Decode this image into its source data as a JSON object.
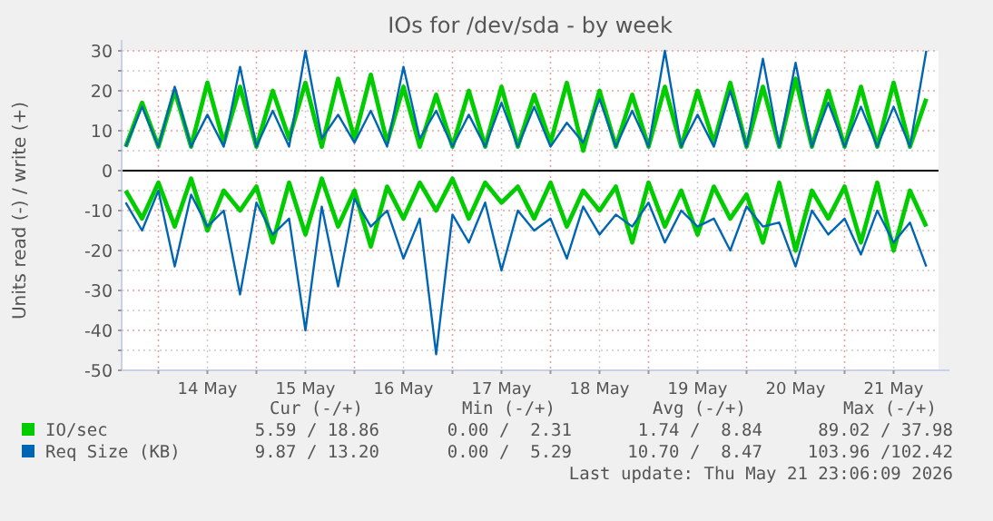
{
  "chart_data": {
    "type": "line",
    "title": "IOs for /dev/sda - by week",
    "ylabel": "Units read (-) / write (+)",
    "x": [
      "2026-05-13T16:00",
      "2026-05-13T20:00",
      "2026-05-14T00:00",
      "2026-05-14T04:00",
      "2026-05-14T08:00",
      "2026-05-14T12:00",
      "2026-05-14T16:00",
      "2026-05-14T20:00",
      "2026-05-15T00:00",
      "2026-05-15T04:00",
      "2026-05-15T08:00",
      "2026-05-15T12:00",
      "2026-05-15T16:00",
      "2026-05-15T20:00",
      "2026-05-16T00:00",
      "2026-05-16T04:00",
      "2026-05-16T08:00",
      "2026-05-16T12:00",
      "2026-05-16T16:00",
      "2026-05-16T20:00",
      "2026-05-17T00:00",
      "2026-05-17T04:00",
      "2026-05-17T08:00",
      "2026-05-17T12:00",
      "2026-05-17T16:00",
      "2026-05-17T20:00",
      "2026-05-18T00:00",
      "2026-05-18T04:00",
      "2026-05-18T08:00",
      "2026-05-18T12:00",
      "2026-05-18T16:00",
      "2026-05-18T20:00",
      "2026-05-19T00:00",
      "2026-05-19T04:00",
      "2026-05-19T08:00",
      "2026-05-19T12:00",
      "2026-05-19T16:00",
      "2026-05-19T20:00",
      "2026-05-20T00:00",
      "2026-05-20T04:00",
      "2026-05-20T08:00",
      "2026-05-20T12:00",
      "2026-05-20T16:00",
      "2026-05-20T20:00",
      "2026-05-21T00:00",
      "2026-05-21T04:00",
      "2026-05-21T08:00",
      "2026-05-21T12:00",
      "2026-05-21T16:00",
      "2026-05-21T20:00"
    ],
    "series": [
      {
        "color": "#00cc00",
        "values": [
          -5,
          -12,
          -3,
          -14,
          -2,
          -15,
          -5,
          -10,
          -4,
          -18,
          -3,
          -16,
          -2,
          -14,
          -5,
          -19,
          -4,
          -12,
          -3,
          -10,
          -2,
          -12,
          -3,
          -8,
          -4,
          -12,
          -3,
          -14,
          -5,
          -10,
          -4,
          -18,
          -3,
          -14,
          -5,
          -16,
          -4,
          -12,
          -6,
          -18,
          -3,
          -20,
          -5,
          -12,
          -4,
          -18,
          -3,
          -20,
          -5,
          -14
        ]
      },
      {
        "name": "IO/sec",
        "color": "#00cc00",
        "values": [
          6,
          17,
          6,
          20,
          6,
          22,
          7,
          21,
          6,
          20,
          8,
          22,
          6,
          23,
          8,
          24,
          7,
          21,
          6,
          19,
          6,
          20,
          6,
          21,
          6,
          19,
          7,
          22,
          5,
          20,
          6,
          19,
          6,
          21,
          6,
          20,
          7,
          22,
          6,
          21,
          6,
          23,
          6,
          20,
          6,
          21,
          6,
          22,
          6,
          18
        ]
      },
      {
        "color": "#0066b3",
        "values": [
          -8,
          -15,
          -5,
          -24,
          -6,
          -14,
          -10,
          -31,
          -8,
          -16,
          -12,
          -40,
          -9,
          -29,
          -7,
          -14,
          -10,
          -22,
          -12,
          -46,
          -11,
          -18,
          -8,
          -25,
          -10,
          -15,
          -12,
          -22,
          -9,
          -16,
          -11,
          -14,
          -8,
          -18,
          -10,
          -14,
          -12,
          -20,
          -9,
          -14,
          -13,
          -24,
          -10,
          -16,
          -12,
          -21,
          -10,
          -18,
          -13,
          -24
        ]
      },
      {
        "name": "Req Size (KB)",
        "color": "#0066b3",
        "values": [
          6,
          16,
          6,
          21,
          6,
          14,
          6,
          26,
          6,
          15,
          6,
          30,
          8,
          14,
          7,
          15,
          6,
          26,
          8,
          15,
          6,
          14,
          6,
          17,
          6,
          16,
          6,
          12,
          7,
          18,
          6,
          15,
          6,
          30,
          6,
          14,
          6,
          20,
          6,
          28,
          6,
          27,
          6,
          17,
          6,
          16,
          6,
          16,
          6,
          30
        ]
      }
    ],
    "xlim": [
      "2026-05-13T15:00",
      "2026-05-21T23:00"
    ],
    "xticks": [
      {
        "value": "2026-05-14T00:00",
        "label": null
      },
      {
        "value": "2026-05-14T12:00",
        "label": "14 May"
      },
      {
        "value": "2026-05-15T00:00",
        "label": null
      },
      {
        "value": "2026-05-15T12:00",
        "label": "15 May"
      },
      {
        "value": "2026-05-16T00:00",
        "label": null
      },
      {
        "value": "2026-05-16T12:00",
        "label": "16 May"
      },
      {
        "value": "2026-05-17T00:00",
        "label": null
      },
      {
        "value": "2026-05-17T12:00",
        "label": "17 May"
      },
      {
        "value": "2026-05-18T00:00",
        "label": null
      },
      {
        "value": "2026-05-18T12:00",
        "label": "18 May"
      },
      {
        "value": "2026-05-19T00:00",
        "label": null
      },
      {
        "value": "2026-05-19T12:00",
        "label": "19 May"
      },
      {
        "value": "2026-05-20T00:00",
        "label": null
      },
      {
        "value": "2026-05-20T12:00",
        "label": "20 May"
      },
      {
        "value": "2026-05-21T00:00",
        "label": null
      },
      {
        "value": "2026-05-21T12:00",
        "label": "21 May"
      }
    ],
    "ylim": [
      -50,
      30
    ],
    "yticks": [
      -50,
      {
        "value": -45,
        "label": null
      },
      -40,
      {
        "value": -35,
        "label": null
      },
      -30,
      {
        "value": -25,
        "label": null
      },
      -20,
      {
        "value": -15,
        "label": null
      },
      -10,
      {
        "value": -5,
        "label": null
      },
      0,
      {
        "value": 5,
        "label": null
      },
      10,
      {
        "value": 15,
        "label": null
      },
      20,
      {
        "value": 25,
        "label": null
      },
      30
    ],
    "grid": true,
    "ref_lines": [
      {
        "axis": "y",
        "value": 0,
        "color": "#000000"
      }
    ],
    "legend": "bottom",
    "annotations": [
      "Cur (-/+)",
      "Min (-/+)",
      "Avg (-/+)",
      "Max (-/+)",
      "5.59 / 18.86",
      "0.00 /  2.31",
      "1.74 /  8.84",
      "89.02 / 37.98",
      "9.87 / 13.20",
      "0.00 /  5.29",
      "10.70 /  8.47",
      "103.96 /102.42",
      "Last update: Thu May 21 23:06:09 2026"
    ]
  }
}
